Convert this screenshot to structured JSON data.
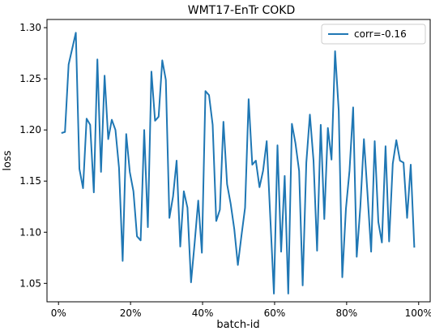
{
  "chart_data": {
    "type": "line",
    "title": "WMT17-EnTr COKD",
    "xlabel": "batch-id",
    "ylabel": "loss",
    "xlim": [
      -0.032,
      1.032
    ],
    "ylim": [
      1.032,
      1.308
    ],
    "x_ticks": [
      0,
      0.2,
      0.4,
      0.6,
      0.8,
      1.0
    ],
    "x_tick_labels": [
      "0%",
      "20%",
      "40%",
      "60%",
      "80%",
      "100%"
    ],
    "y_ticks": [
      1.05,
      1.1,
      1.15,
      1.2,
      1.25,
      1.3
    ],
    "y_tick_labels": [
      "1.05",
      "1.10",
      "1.15",
      "1.20",
      "1.25",
      "1.30"
    ],
    "grid": false,
    "legend_position": "top-right",
    "series": [
      {
        "name": "corr=-0.16",
        "color": "#1f77b4",
        "x": [
          0.008,
          0.018,
          0.028,
          0.048,
          0.058,
          0.068,
          0.078,
          0.088,
          0.098,
          0.108,
          0.118,
          0.128,
          0.138,
          0.148,
          0.158,
          0.168,
          0.178,
          0.188,
          0.198,
          0.208,
          0.218,
          0.228,
          0.238,
          0.248,
          0.258,
          0.268,
          0.278,
          0.288,
          0.298,
          0.308,
          0.318,
          0.328,
          0.338,
          0.348,
          0.358,
          0.368,
          0.378,
          0.388,
          0.398,
          0.408,
          0.418,
          0.428,
          0.438,
          0.448,
          0.458,
          0.468,
          0.478,
          0.488,
          0.498,
          0.508,
          0.518,
          0.528,
          0.538,
          0.548,
          0.558,
          0.568,
          0.578,
          0.588,
          0.598,
          0.608,
          0.618,
          0.628,
          0.638,
          0.648,
          0.658,
          0.668,
          0.678,
          0.688,
          0.698,
          0.708,
          0.718,
          0.728,
          0.738,
          0.748,
          0.758,
          0.768,
          0.778,
          0.788,
          0.798,
          0.808,
          0.818,
          0.828,
          0.838,
          0.848,
          0.858,
          0.868,
          0.878,
          0.888,
          0.898,
          0.908,
          0.918,
          0.928,
          0.938,
          0.948,
          0.958,
          0.968,
          0.978,
          0.988
        ],
        "values": [
          1.197,
          1.198,
          1.264,
          1.295,
          1.162,
          1.143,
          1.211,
          1.205,
          1.139,
          1.269,
          1.159,
          1.253,
          1.191,
          1.21,
          1.2,
          1.163,
          1.072,
          1.196,
          1.159,
          1.14,
          1.096,
          1.092,
          1.2,
          1.105,
          1.257,
          1.209,
          1.213,
          1.268,
          1.249,
          1.114,
          1.135,
          1.17,
          1.086,
          1.14,
          1.124,
          1.051,
          1.09,
          1.131,
          1.08,
          1.238,
          1.234,
          1.205,
          1.111,
          1.122,
          1.208,
          1.147,
          1.128,
          1.103,
          1.068,
          1.097,
          1.124,
          1.23,
          1.166,
          1.17,
          1.144,
          1.16,
          1.189,
          1.115,
          1.04,
          1.185,
          1.081,
          1.155,
          1.04,
          1.206,
          1.187,
          1.16,
          1.048,
          1.168,
          1.215,
          1.17,
          1.082,
          1.205,
          1.113,
          1.202,
          1.171,
          1.277,
          1.219,
          1.056,
          1.123,
          1.16,
          1.222,
          1.076,
          1.125,
          1.191,
          1.138,
          1.081,
          1.189,
          1.11,
          1.09,
          1.184,
          1.091,
          1.167,
          1.19,
          1.17,
          1.168,
          1.114,
          1.166,
          1.085
        ]
      }
    ]
  }
}
